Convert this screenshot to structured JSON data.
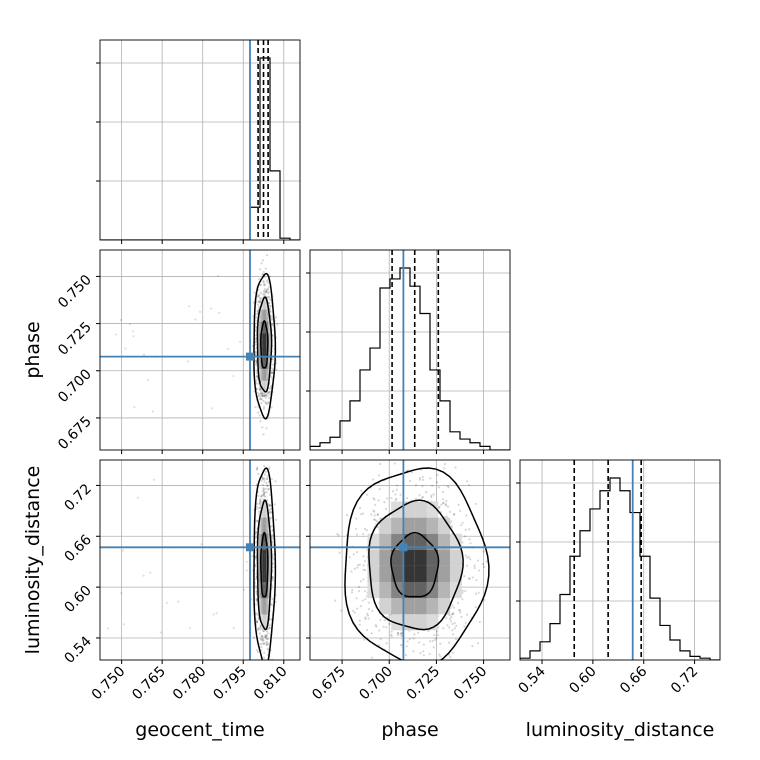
{
  "colors": {
    "truth": "#4682b4",
    "hist_line": "#000000",
    "grid": "#b0b0b0",
    "density_scale": [
      "#ffffff",
      "#e6e6e6",
      "#bdbdbd",
      "#969696",
      "#636363",
      "#252525"
    ]
  },
  "chart_data": {
    "type": "corner",
    "parameters": [
      "geocent_time",
      "phase",
      "luminosity_distance"
    ],
    "axis_labels": {
      "geocent_time": "geocent_time",
      "phase": "phase",
      "luminosity_distance": "luminosity_distance"
    },
    "ranges": {
      "geocent_time": [
        0.742,
        0.816
      ],
      "phase": [
        0.658,
        0.764
      ],
      "luminosity_distance": [
        0.514,
        0.75
      ]
    },
    "ticks": {
      "geocent_time": [
        "0.750",
        "0.765",
        "0.780",
        "0.795",
        "0.810"
      ],
      "phase": [
        "0.675",
        "0.700",
        "0.725",
        "0.750"
      ],
      "luminosity_distance": [
        "0.54",
        "0.60",
        "0.66",
        "0.72"
      ]
    },
    "truths": {
      "geocent_time": 0.7975,
      "phase": 0.7075,
      "luminosity_distance": 0.647
    },
    "quantiles": {
      "geocent_time": [
        0.8005,
        0.8025,
        0.8042
      ],
      "phase": [
        0.7015,
        0.7135,
        0.726
      ],
      "luminosity_distance": [
        0.578,
        0.618,
        0.657
      ]
    },
    "histograms": {
      "geocent_time": {
        "bins": [
          0.742,
          0.7457,
          0.7494,
          0.7531,
          0.7568,
          0.7605,
          0.7642,
          0.7679,
          0.7716,
          0.7753,
          0.779,
          0.7827,
          0.7864,
          0.7901,
          0.7938,
          0.7975,
          0.8012,
          0.8049,
          0.8086,
          0.8123,
          0.816
        ],
        "counts": [
          0,
          0,
          0,
          0,
          0,
          0,
          0,
          0,
          0,
          0,
          0,
          0,
          0,
          0,
          0,
          0.18,
          1.0,
          0.38,
          0.01,
          0
        ]
      },
      "phase": {
        "bins": [
          0.658,
          0.6633,
          0.6686,
          0.6739,
          0.6792,
          0.6845,
          0.6898,
          0.6951,
          0.7004,
          0.7057,
          0.711,
          0.7163,
          0.7216,
          0.7269,
          0.7322,
          0.7375,
          0.7428,
          0.7481,
          0.7534,
          0.7587,
          0.764
        ],
        "counts": [
          0.02,
          0.04,
          0.07,
          0.16,
          0.27,
          0.44,
          0.56,
          0.89,
          0.94,
          1.0,
          0.9,
          0.75,
          0.44,
          0.27,
          0.1,
          0.06,
          0.04,
          0.02,
          0.0,
          0.0
        ]
      },
      "luminosity_distance": {
        "bins": [
          0.514,
          0.5258,
          0.5376,
          0.5494,
          0.5612,
          0.573,
          0.5848,
          0.5966,
          0.6084,
          0.6202,
          0.632,
          0.6438,
          0.6556,
          0.6674,
          0.6792,
          0.691,
          0.7028,
          0.7146,
          0.7264,
          0.7382,
          0.75
        ],
        "counts": [
          0.01,
          0.05,
          0.1,
          0.2,
          0.36,
          0.57,
          0.71,
          0.83,
          0.93,
          1.0,
          0.93,
          0.81,
          0.57,
          0.34,
          0.19,
          0.11,
          0.05,
          0.02,
          0.01,
          0.0
        ]
      }
    },
    "posterior": {
      "center": {
        "geocent_time": 0.8028,
        "phase": 0.7135,
        "luminosity_distance": 0.625
      },
      "sigma": {
        "geocent_time": 0.0013,
        "phase": 0.0125,
        "luminosity_distance": 0.038
      },
      "levels": [
        0.39,
        0.86,
        0.99
      ]
    }
  }
}
